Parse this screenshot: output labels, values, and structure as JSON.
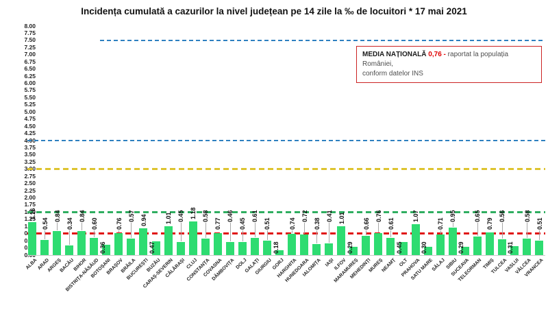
{
  "chart_data": {
    "type": "bar",
    "title": "Incidența cumulată a cazurilor la nivel județean pe 14 zile la ‰ de locuitori *  17 mai 2021",
    "categories": [
      "ALBA",
      "ARAD",
      "ARGEȘ",
      "BACĂU",
      "BIHOR",
      "BISTRIȚA-NĂSĂUD",
      "BOTOȘANI",
      "BRAȘOV",
      "BRĂILA",
      "BUCUREȘTI",
      "BUZĂU",
      "CARAȘ-SEVERIN",
      "CĂLĂRAȘI",
      "CLUJ",
      "CONSTANȚA",
      "COVASNA",
      "DÂMBOVIȚA",
      "DOLJ",
      "GALAȚI",
      "GIURGIU",
      "GORJ",
      "HARGHITA",
      "HUNEDOARA",
      "IALOMIȚA",
      "IAȘI",
      "ILFOV",
      "MARAMUREȘ",
      "MEHEDINȚI",
      "MUREȘ",
      "NEAMȚ",
      "OLT",
      "PRAHOVA",
      "SATU MARE",
      "SĂLAJ",
      "SIBIU",
      "SUCEAVA",
      "TELEORMAN",
      "TIMIȘ",
      "TULCEA",
      "VASLUI",
      "VÂLCEA",
      "VRANCEA"
    ],
    "values": [
      1.16,
      0.54,
      0.84,
      0.34,
      0.84,
      0.6,
      0.36,
      0.76,
      0.57,
      0.94,
      0.47,
      1.01,
      0.45,
      1.18,
      0.58,
      0.77,
      0.46,
      0.45,
      0.61,
      0.51,
      0.18,
      0.74,
      0.72,
      0.38,
      0.41,
      1.01,
      0.29,
      0.66,
      0.76,
      0.61,
      0.45,
      1.07,
      0.3,
      0.71,
      0.95,
      0.29,
      0.65,
      0.79,
      0.56,
      0.31,
      0.58,
      0.51
    ],
    "ylim": [
      0,
      8
    ],
    "ytick_step": 0.25,
    "grid": false,
    "bar_color": "#2edc71",
    "value_label_decimals": 2,
    "reference_lines": [
      {
        "name": "upper-threshold",
        "value": 7.5,
        "color": "#2e80c0",
        "style": "dashed"
      },
      {
        "name": "mid-threshold",
        "value": 4.0,
        "color": "#2e80c0",
        "style": "dashed"
      },
      {
        "name": "yellow-threshold",
        "value": 3.0,
        "color": "#ddc42f",
        "style": "dashed"
      },
      {
        "name": "green-threshold",
        "value": 1.5,
        "color": "#2fae60",
        "style": "dashed"
      },
      {
        "name": "national-average",
        "value": 0.76,
        "color": "#e01010",
        "style": "dashed"
      }
    ]
  },
  "legend": {
    "label": "MEDIA NAȚIONALĂ",
    "value": "0,76",
    "dash": "-",
    "rest": "raportat la populația României,",
    "line2": "conform datelor INS",
    "border_color": "#cc2222",
    "value_color": "#e00000"
  }
}
